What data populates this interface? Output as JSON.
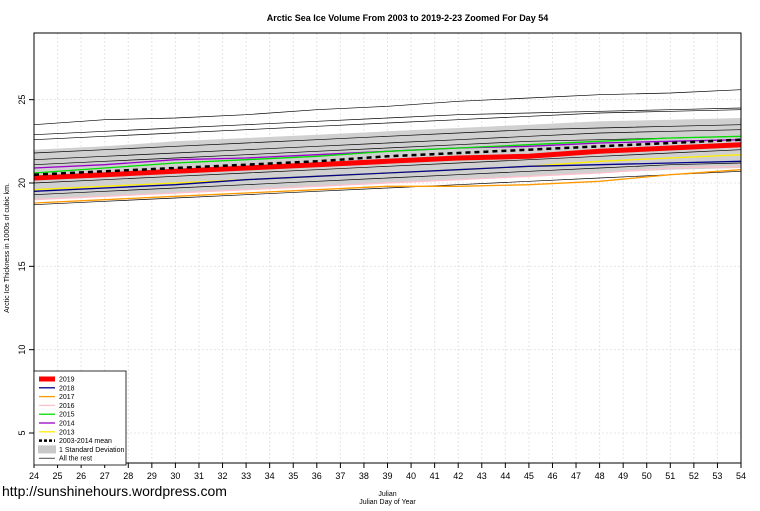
{
  "chart_data": {
    "type": "line",
    "title": "Arctic Sea Ice Volume From 2003 to 2019-2-23 Zoomed For Day 54",
    "xlabel_top": "Julian",
    "xlabel": "Julian Day of Year",
    "ylabel": "Arctic Ice Thickness in 1000s of cubic km.",
    "xlim": [
      24,
      54
    ],
    "ylim": [
      3.2,
      29
    ],
    "x_ticks": [
      24,
      25,
      26,
      27,
      28,
      29,
      30,
      31,
      32,
      33,
      34,
      35,
      36,
      37,
      38,
      39,
      40,
      41,
      42,
      43,
      44,
      45,
      46,
      47,
      48,
      49,
      50,
      51,
      52,
      53,
      54
    ],
    "y_ticks": [
      5,
      10,
      15,
      20,
      25
    ],
    "grid": true,
    "legend_position": "bottom-left",
    "x": [
      24,
      27,
      30,
      33,
      36,
      39,
      42,
      45,
      48,
      51,
      54
    ],
    "std_band": {
      "name": "1 Standard Deviation",
      "upper": [
        22.0,
        22.2,
        22.5,
        22.7,
        22.9,
        23.1,
        23.3,
        23.5,
        23.7,
        23.8,
        23.9
      ],
      "lower": [
        19.0,
        19.2,
        19.4,
        19.6,
        19.8,
        20.0,
        20.2,
        20.4,
        20.6,
        20.8,
        20.9
      ]
    },
    "mean": {
      "name": "2003-2014 mean",
      "values": [
        20.5,
        20.7,
        20.9,
        21.1,
        21.3,
        21.6,
        21.8,
        22.0,
        22.2,
        22.4,
        22.6
      ]
    },
    "series": [
      {
        "name": "2019",
        "color": "#ff0000",
        "width": 5,
        "values": [
          20.3,
          20.5,
          20.7,
          20.9,
          21.1,
          21.3,
          21.5,
          21.6,
          21.9,
          22.1,
          22.3
        ]
      },
      {
        "name": "2018",
        "color": "#00008b",
        "width": 1.3,
        "values": [
          19.5,
          19.7,
          19.9,
          20.2,
          20.4,
          20.6,
          20.8,
          21.0,
          21.1,
          21.2,
          21.3
        ]
      },
      {
        "name": "2017",
        "color": "#ff9900",
        "width": 1.3,
        "values": [
          18.8,
          19.0,
          19.2,
          19.4,
          19.6,
          19.8,
          19.8,
          19.9,
          20.1,
          20.5,
          20.8
        ]
      },
      {
        "name": "2016",
        "color": "#ffc0cb",
        "width": 1.3,
        "values": [
          19.0,
          19.2,
          19.4,
          19.6,
          19.8,
          20.0,
          20.2,
          20.4,
          20.6,
          20.9,
          21.0
        ]
      },
      {
        "name": "2015",
        "color": "#00dd00",
        "width": 1.3,
        "values": [
          20.6,
          20.9,
          21.2,
          21.4,
          21.6,
          21.9,
          22.1,
          22.3,
          22.5,
          22.7,
          22.8
        ]
      },
      {
        "name": "2014",
        "color": "#9900cc",
        "width": 1.3,
        "values": [
          20.9,
          21.1,
          21.4,
          21.5,
          21.7,
          21.9,
          22.1,
          22.2,
          22.4,
          22.5,
          22.6
        ]
      },
      {
        "name": "2013",
        "color": "#ffee00",
        "width": 1.3,
        "values": [
          19.6,
          19.8,
          20.0,
          20.2,
          20.4,
          20.6,
          20.8,
          21.0,
          21.3,
          21.5,
          21.7
        ]
      }
    ],
    "rest": {
      "name": "All the rest",
      "color": "#000000",
      "lines": [
        [
          23.5,
          23.8,
          23.9,
          24.1,
          24.4,
          24.6,
          24.9,
          25.1,
          25.3,
          25.4,
          25.6
        ],
        [
          22.9,
          23.1,
          23.3,
          23.5,
          23.7,
          23.9,
          24.1,
          24.2,
          24.3,
          24.4,
          24.5
        ],
        [
          22.6,
          22.8,
          23.0,
          23.2,
          23.4,
          23.6,
          23.8,
          24.0,
          24.2,
          24.3,
          24.4
        ],
        [
          21.8,
          22.0,
          22.2,
          22.4,
          22.6,
          22.8,
          23.0,
          23.2,
          23.3,
          23.4,
          23.5
        ],
        [
          21.4,
          21.6,
          21.8,
          22.0,
          22.2,
          22.4,
          22.6,
          22.8,
          23.0,
          23.1,
          23.2
        ],
        [
          21.1,
          21.3,
          21.5,
          21.7,
          21.9,
          22.1,
          22.3,
          22.5,
          22.6,
          22.7,
          22.8
        ],
        [
          20.0,
          20.2,
          20.4,
          20.6,
          20.8,
          21.0,
          21.2,
          21.4,
          21.6,
          21.8,
          22.0
        ],
        [
          19.3,
          19.5,
          19.7,
          19.9,
          20.1,
          20.3,
          20.5,
          20.7,
          20.9,
          21.1,
          21.2
        ],
        [
          18.7,
          18.9,
          19.1,
          19.3,
          19.5,
          19.7,
          19.9,
          20.1,
          20.3,
          20.5,
          20.7
        ]
      ]
    },
    "legend": [
      {
        "label": "2019",
        "color": "#ff0000",
        "kind": "line",
        "width": 5
      },
      {
        "label": "2018",
        "color": "#00008b",
        "kind": "line",
        "width": 1.3
      },
      {
        "label": "2017",
        "color": "#ff9900",
        "kind": "line",
        "width": 1.3
      },
      {
        "label": "2016",
        "color": "#ffc0cb",
        "kind": "line",
        "width": 1.3
      },
      {
        "label": "2015",
        "color": "#00dd00",
        "kind": "line",
        "width": 1.3
      },
      {
        "label": "2014",
        "color": "#9900cc",
        "kind": "line",
        "width": 1.3
      },
      {
        "label": "2013",
        "color": "#ffee00",
        "kind": "line",
        "width": 1.3
      },
      {
        "label": "2003-2014 mean",
        "color": "#000000",
        "kind": "dashed",
        "width": 2.5
      },
      {
        "label": "1 Standard Deviation",
        "color": "#c8c8c8",
        "kind": "band",
        "width": 10
      },
      {
        "label": "All the rest",
        "color": "#000000",
        "kind": "line",
        "width": 0.7
      }
    ]
  },
  "watermark": "http://sunshinehours.wordpress.com"
}
